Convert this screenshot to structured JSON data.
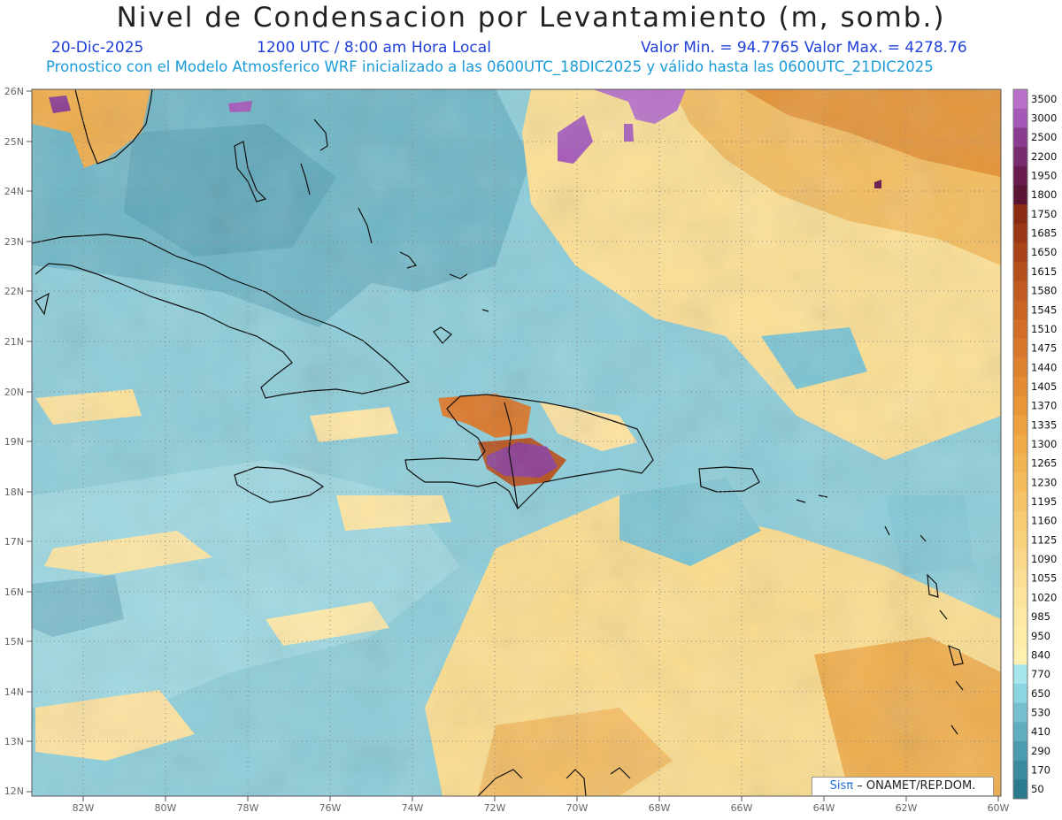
{
  "title": "Nivel de Condensacion por Levantamiento (m, somb.)",
  "date": "20-Dic-2025",
  "time": "1200 UTC / 8:00 am Hora Local",
  "minmax": "Valor Min. = 94.7765   Valor Max. = 4278.76",
  "subtitle": "Pronostico con el Modelo Atmosferico WRF inicializado a las 0600UTC_18DIC2025 y válido hasta las  0600UTC_21DIC2025",
  "credit_logo": "Sisπ",
  "credit_text": "– ONAMET/REP.DOM.",
  "lat_labels": [
    "26N",
    "25N",
    "24N",
    "23N",
    "22N",
    "21N",
    "20N",
    "19N",
    "18N",
    "17N",
    "16N",
    "15N",
    "14N",
    "13N",
    "12N"
  ],
  "lon_labels": [
    "82W",
    "80W",
    "78W",
    "76W",
    "74W",
    "72W",
    "70W",
    "68W",
    "66W",
    "64W",
    "62W",
    "60W"
  ],
  "colorbar": [
    {
      "v": "3500",
      "c": "#b870c8"
    },
    {
      "v": "3000",
      "c": "#a458b8"
    },
    {
      "v": "2500",
      "c": "#8a3c90"
    },
    {
      "v": "2200",
      "c": "#7a2c70"
    },
    {
      "v": "1950",
      "c": "#6a1c50"
    },
    {
      "v": "1800",
      "c": "#5c1434"
    },
    {
      "v": "1750",
      "c": "#8a2c14"
    },
    {
      "v": "1685",
      "c": "#9a3816"
    },
    {
      "v": "1650",
      "c": "#a84418"
    },
    {
      "v": "1615",
      "c": "#b5501c"
    },
    {
      "v": "1580",
      "c": "#c05a20"
    },
    {
      "v": "1545",
      "c": "#ca6424"
    },
    {
      "v": "1510",
      "c": "#d26e28"
    },
    {
      "v": "1475",
      "c": "#d9782c"
    },
    {
      "v": "1440",
      "c": "#df8230"
    },
    {
      "v": "1405",
      "c": "#e48c34"
    },
    {
      "v": "1370",
      "c": "#e89638"
    },
    {
      "v": "1335",
      "c": "#eca03e"
    },
    {
      "v": "1300",
      "c": "#f0aa46"
    },
    {
      "v": "1265",
      "c": "#f2b450"
    },
    {
      "v": "1230",
      "c": "#f4bc5a"
    },
    {
      "v": "1195",
      "c": "#f6c466"
    },
    {
      "v": "1160",
      "c": "#f8cc72"
    },
    {
      "v": "1125",
      "c": "#f9d27e"
    },
    {
      "v": "1090",
      "c": "#fad88a"
    },
    {
      "v": "1055",
      "c": "#fbde94"
    },
    {
      "v": "1020",
      "c": "#fce49c"
    },
    {
      "v": "985",
      "c": "#fde8a4"
    },
    {
      "v": "950",
      "c": "#feeca8"
    },
    {
      "v": "840",
      "c": "#fff0b0"
    },
    {
      "v": "770",
      "c": "#a8e6ee"
    },
    {
      "v": "650",
      "c": "#8cd4e0"
    },
    {
      "v": "530",
      "c": "#74c0d0"
    },
    {
      "v": "410",
      "c": "#60aec0"
    },
    {
      "v": "290",
      "c": "#4c9cb0"
    },
    {
      "v": "170",
      "c": "#3a8a9e"
    },
    {
      "v": "50",
      "c": "#2a7a8e"
    }
  ]
}
